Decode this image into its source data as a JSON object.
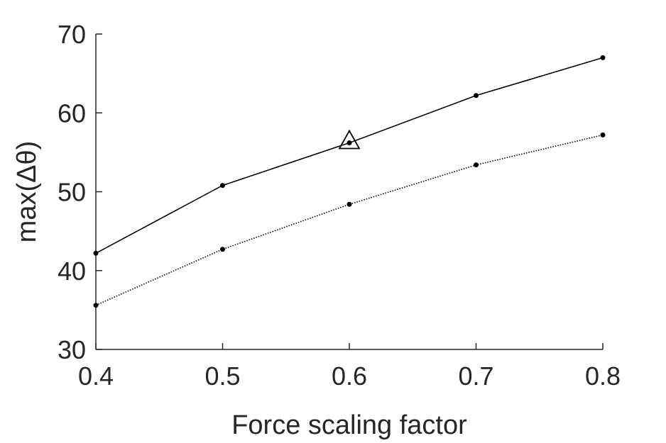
{
  "chart_data": {
    "type": "line",
    "title": "",
    "xlabel": "Force scaling factor",
    "ylabel": "max(Δθ)",
    "xlim": [
      0.4,
      0.8
    ],
    "ylim": [
      30,
      70
    ],
    "x_ticks": [
      "0.4",
      "0.5",
      "0.6",
      "0.7",
      "0.8"
    ],
    "y_ticks": [
      "30",
      "40",
      "50",
      "60",
      "70"
    ],
    "x": [
      0.4,
      0.5,
      0.6,
      0.7,
      0.8
    ],
    "grid": false,
    "series": [
      {
        "style": "solid",
        "color": "#000000",
        "marker": "dot",
        "values": [
          42.2,
          50.8,
          56.2,
          62.2,
          67.0
        ]
      },
      {
        "style": "dotted",
        "color": "#000000",
        "marker": "dot",
        "values": [
          35.6,
          42.7,
          48.4,
          53.4,
          57.2
        ]
      }
    ],
    "annotations": [
      {
        "marker": "triangle",
        "x": 0.6,
        "y": 56.2
      }
    ]
  }
}
